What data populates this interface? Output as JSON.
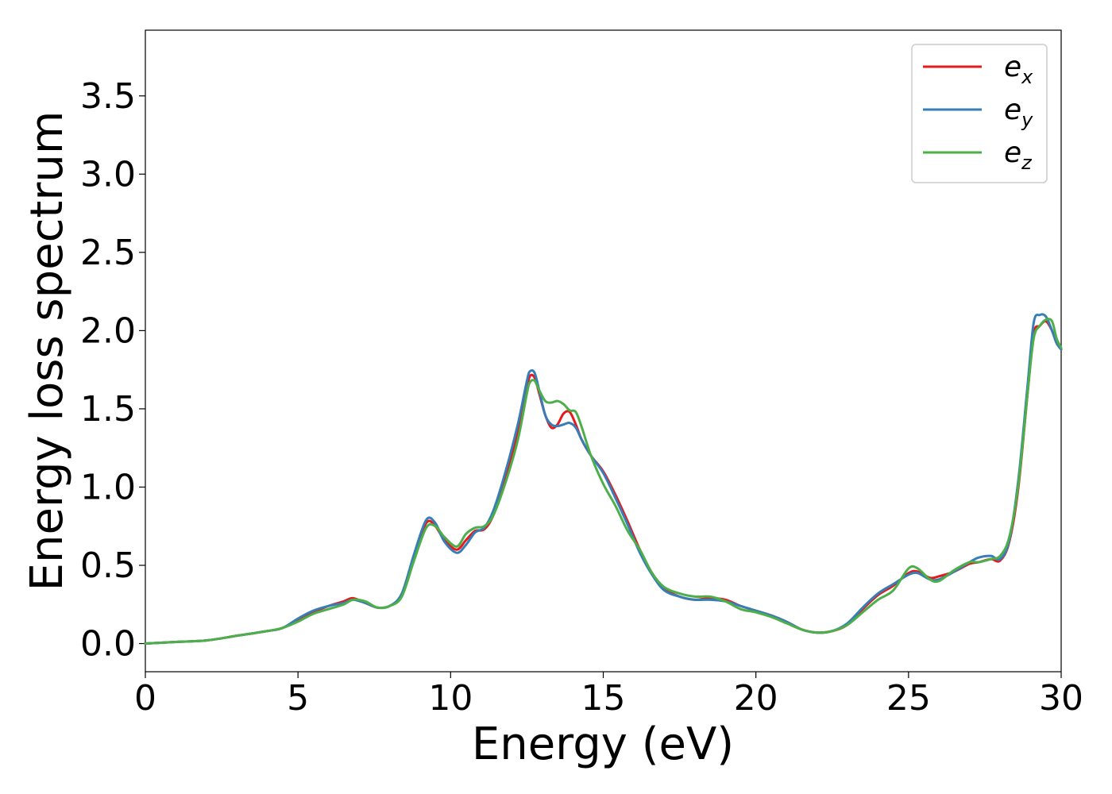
{
  "chart_data": {
    "type": "line",
    "xlabel": "Energy (eV)",
    "ylabel": "Energy loss spectrum",
    "xlim": [
      0,
      30
    ],
    "ylim": [
      -0.18,
      3.92
    ],
    "xticks": [
      0,
      5,
      10,
      15,
      20,
      25,
      30
    ],
    "xtick_labels": [
      "0",
      "5",
      "10",
      "15",
      "20",
      "25",
      "30"
    ],
    "yticks": [
      0.0,
      0.5,
      1.0,
      1.5,
      2.0,
      2.5,
      3.0,
      3.5
    ],
    "ytick_labels": [
      "0.0",
      "0.5",
      "1.0",
      "1.5",
      "2.0",
      "2.5",
      "3.0",
      "3.5"
    ],
    "grid": false,
    "legend_position": "top-right",
    "series": [
      {
        "name": "e",
        "subscript": "x",
        "color": "#e41a1c",
        "x": [
          0,
          1,
          2,
          3,
          4,
          4.5,
          5,
          5.5,
          6,
          6.5,
          6.8,
          7.2,
          7.6,
          8.0,
          8.4,
          8.8,
          9.2,
          9.5,
          9.8,
          10.2,
          10.5,
          10.8,
          11.1,
          11.4,
          11.8,
          12.2,
          12.5,
          12.6,
          12.75,
          12.9,
          13.1,
          13.3,
          13.5,
          13.7,
          13.9,
          14.1,
          14.3,
          14.6,
          15.0,
          15.4,
          15.8,
          16.2,
          16.6,
          17.0,
          17.5,
          18.0,
          18.5,
          19.0,
          19.5,
          20.0,
          20.5,
          21.0,
          21.5,
          22.0,
          22.5,
          23.0,
          23.5,
          24.0,
          24.5,
          25.0,
          25.3,
          25.7,
          26.0,
          26.5,
          27.0,
          27.3,
          27.7,
          28.0,
          28.3,
          28.6,
          28.9,
          29.1,
          29.3,
          29.5,
          29.7,
          29.85,
          30.0
        ],
        "y": [
          0.0,
          0.01,
          0.02,
          0.05,
          0.08,
          0.1,
          0.15,
          0.2,
          0.24,
          0.27,
          0.29,
          0.26,
          0.23,
          0.24,
          0.31,
          0.55,
          0.77,
          0.75,
          0.66,
          0.6,
          0.66,
          0.72,
          0.73,
          0.82,
          1.05,
          1.35,
          1.63,
          1.71,
          1.7,
          1.6,
          1.46,
          1.38,
          1.4,
          1.47,
          1.48,
          1.4,
          1.3,
          1.2,
          1.1,
          0.95,
          0.78,
          0.6,
          0.45,
          0.35,
          0.3,
          0.28,
          0.29,
          0.28,
          0.24,
          0.21,
          0.18,
          0.14,
          0.09,
          0.07,
          0.08,
          0.12,
          0.22,
          0.31,
          0.37,
          0.45,
          0.46,
          0.42,
          0.43,
          0.46,
          0.51,
          0.52,
          0.54,
          0.53,
          0.65,
          1.0,
          1.6,
          1.98,
          2.03,
          2.06,
          2.0,
          1.92,
          1.88
        ]
      },
      {
        "name": "e",
        "subscript": "y",
        "color": "#377eb8",
        "x": [
          0,
          1,
          2,
          3,
          4,
          4.5,
          5,
          5.5,
          6,
          6.5,
          6.8,
          7.2,
          7.6,
          8.0,
          8.4,
          8.8,
          9.2,
          9.5,
          9.8,
          10.2,
          10.5,
          10.8,
          11.1,
          11.4,
          11.8,
          12.2,
          12.5,
          12.6,
          12.75,
          12.9,
          13.1,
          13.3,
          13.5,
          13.7,
          13.9,
          14.1,
          14.3,
          14.6,
          15.0,
          15.4,
          15.8,
          16.2,
          16.6,
          17.0,
          17.5,
          18.0,
          18.5,
          19.0,
          19.5,
          20.0,
          20.5,
          21.0,
          21.5,
          22.0,
          22.5,
          23.0,
          23.5,
          24.0,
          24.5,
          25.0,
          25.3,
          25.7,
          26.0,
          26.5,
          27.0,
          27.3,
          27.7,
          28.0,
          28.3,
          28.6,
          28.9,
          29.1,
          29.3,
          29.5,
          29.7,
          29.85,
          30.0
        ],
        "y": [
          0.0,
          0.01,
          0.02,
          0.05,
          0.08,
          0.1,
          0.16,
          0.21,
          0.24,
          0.26,
          0.28,
          0.26,
          0.23,
          0.24,
          0.32,
          0.57,
          0.79,
          0.77,
          0.65,
          0.58,
          0.63,
          0.71,
          0.74,
          0.85,
          1.1,
          1.4,
          1.68,
          1.74,
          1.73,
          1.62,
          1.46,
          1.4,
          1.39,
          1.4,
          1.41,
          1.38,
          1.3,
          1.2,
          1.09,
          0.93,
          0.76,
          0.58,
          0.44,
          0.34,
          0.3,
          0.28,
          0.28,
          0.27,
          0.24,
          0.21,
          0.18,
          0.14,
          0.09,
          0.07,
          0.08,
          0.13,
          0.23,
          0.32,
          0.38,
          0.44,
          0.45,
          0.41,
          0.41,
          0.46,
          0.52,
          0.55,
          0.56,
          0.54,
          0.66,
          1.05,
          1.65,
          2.05,
          2.1,
          2.09,
          2.0,
          1.92,
          1.88
        ]
      },
      {
        "name": "e",
        "subscript": "z",
        "color": "#4daf4a",
        "x": [
          0,
          1,
          2,
          3,
          4,
          4.5,
          5,
          5.5,
          6,
          6.5,
          6.8,
          7.2,
          7.6,
          8.0,
          8.4,
          8.8,
          9.2,
          9.5,
          9.8,
          10.2,
          10.5,
          10.8,
          11.1,
          11.4,
          11.8,
          12.2,
          12.5,
          12.6,
          12.75,
          12.9,
          13.1,
          13.3,
          13.5,
          13.7,
          13.9,
          14.1,
          14.3,
          14.6,
          15.0,
          15.4,
          15.8,
          16.2,
          16.6,
          17.0,
          17.5,
          18.0,
          18.5,
          19.0,
          19.5,
          20.0,
          20.5,
          21.0,
          21.5,
          22.0,
          22.5,
          23.0,
          23.5,
          24.0,
          24.5,
          25.0,
          25.3,
          25.7,
          26.0,
          26.5,
          27.0,
          27.3,
          27.7,
          28.0,
          28.3,
          28.6,
          28.9,
          29.1,
          29.3,
          29.5,
          29.7,
          29.85,
          30.0
        ],
        "y": [
          0.0,
          0.01,
          0.02,
          0.05,
          0.08,
          0.1,
          0.14,
          0.19,
          0.22,
          0.25,
          0.28,
          0.27,
          0.23,
          0.24,
          0.3,
          0.53,
          0.74,
          0.75,
          0.68,
          0.62,
          0.7,
          0.74,
          0.75,
          0.82,
          1.03,
          1.3,
          1.6,
          1.67,
          1.68,
          1.62,
          1.55,
          1.54,
          1.55,
          1.53,
          1.49,
          1.48,
          1.38,
          1.2,
          1.02,
          0.88,
          0.72,
          0.6,
          0.45,
          0.36,
          0.32,
          0.3,
          0.3,
          0.27,
          0.22,
          0.2,
          0.17,
          0.13,
          0.09,
          0.07,
          0.08,
          0.12,
          0.2,
          0.28,
          0.34,
          0.48,
          0.48,
          0.41,
          0.4,
          0.47,
          0.52,
          0.52,
          0.54,
          0.56,
          0.68,
          1.02,
          1.6,
          1.95,
          2.03,
          2.07,
          2.06,
          1.95,
          1.89
        ]
      }
    ]
  }
}
